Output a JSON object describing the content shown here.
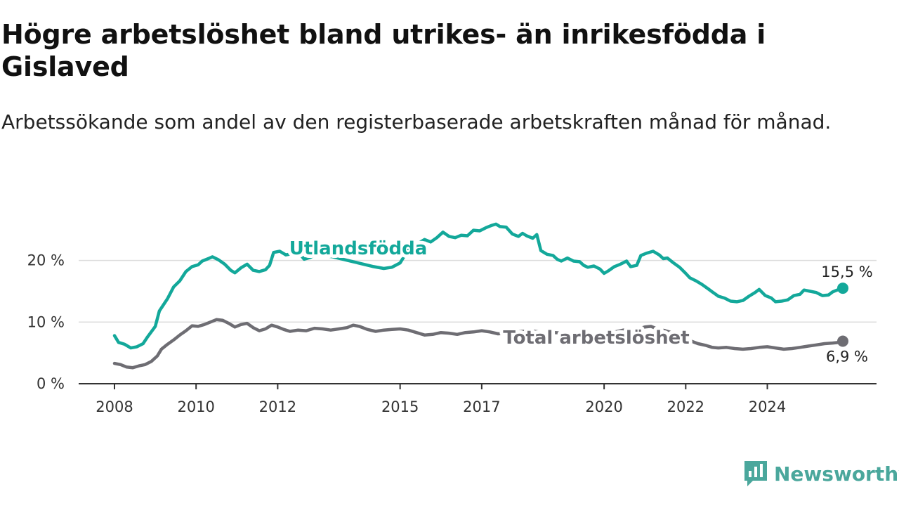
{
  "title": "Högre arbetslöshet bland utrikes- än inrikesfödda i Gislaved",
  "subtitle": "Arbetssökande som andel av den registerbaserade arbetskraften månad för månad.",
  "brand": {
    "name": "Newsworthy",
    "color": "#4aa79c",
    "icon": "newsworthy-logo-icon"
  },
  "chart_data": {
    "type": "line",
    "title": "Högre arbetslöshet bland utrikes- än inrikesfödda i Gislaved",
    "subtitle": "Arbetssökande som andel av den registerbaserade arbetskraften månad för månad.",
    "xlabel": "",
    "ylabel": "",
    "xlim": [
      2008.0,
      2025.0
    ],
    "ylim": [
      0,
      26
    ],
    "x_ticks": [
      2008,
      2010,
      2012,
      2015,
      2017,
      2020,
      2022,
      2024
    ],
    "x_tick_labels": [
      "2008",
      "2010",
      "2012",
      "2015",
      "2017",
      "2020",
      "2022",
      "2024"
    ],
    "y_ticks": [
      0,
      10,
      20
    ],
    "y_tick_labels": [
      "0 %",
      "10 %",
      "20 %"
    ],
    "grid": "horizontal",
    "legend": "inline labels",
    "series": [
      {
        "name": "Utlandsfödda",
        "color": "#13a89a",
        "end_label": "15,5 %",
        "points": [
          [
            2008.0,
            7.8
          ],
          [
            2008.1,
            6.7
          ],
          [
            2008.25,
            6.4
          ],
          [
            2008.4,
            5.8
          ],
          [
            2008.55,
            6.0
          ],
          [
            2008.7,
            6.5
          ],
          [
            2008.8,
            7.5
          ],
          [
            2009.0,
            9.3
          ],
          [
            2009.1,
            11.8
          ],
          [
            2009.3,
            13.8
          ],
          [
            2009.45,
            15.7
          ],
          [
            2009.6,
            16.7
          ],
          [
            2009.75,
            18.2
          ],
          [
            2009.9,
            19.0
          ],
          [
            2010.05,
            19.3
          ],
          [
            2010.15,
            19.9
          ],
          [
            2010.3,
            20.3
          ],
          [
            2010.4,
            20.6
          ],
          [
            2010.55,
            20.1
          ],
          [
            2010.7,
            19.4
          ],
          [
            2010.85,
            18.4
          ],
          [
            2010.95,
            18.0
          ],
          [
            2011.1,
            18.8
          ],
          [
            2011.25,
            19.4
          ],
          [
            2011.4,
            18.4
          ],
          [
            2011.55,
            18.2
          ],
          [
            2011.7,
            18.5
          ],
          [
            2011.8,
            19.2
          ],
          [
            2011.9,
            21.3
          ],
          [
            2012.05,
            21.5
          ],
          [
            2012.2,
            20.9
          ],
          [
            2012.35,
            21.1
          ],
          [
            2012.5,
            21.4
          ],
          [
            2012.65,
            20.2
          ],
          [
            2012.8,
            20.5
          ],
          [
            2012.95,
            21.0
          ],
          [
            2013.1,
            20.8
          ],
          [
            2013.35,
            20.6
          ],
          [
            2013.6,
            20.2
          ],
          [
            2013.85,
            19.8
          ],
          [
            2014.1,
            19.4
          ],
          [
            2014.35,
            19.0
          ],
          [
            2014.6,
            18.7
          ],
          [
            2014.8,
            18.9
          ],
          [
            2015.0,
            19.6
          ],
          [
            2015.15,
            21.2
          ],
          [
            2015.3,
            22.4
          ],
          [
            2015.45,
            22.8
          ],
          [
            2015.6,
            23.4
          ],
          [
            2015.75,
            23.0
          ],
          [
            2015.9,
            23.7
          ],
          [
            2016.05,
            24.6
          ],
          [
            2016.2,
            23.9
          ],
          [
            2016.35,
            23.7
          ],
          [
            2016.5,
            24.1
          ],
          [
            2016.65,
            24.0
          ],
          [
            2016.8,
            24.9
          ],
          [
            2016.95,
            24.8
          ],
          [
            2017.1,
            25.3
          ],
          [
            2017.25,
            25.7
          ],
          [
            2017.35,
            25.9
          ],
          [
            2017.45,
            25.5
          ],
          [
            2017.6,
            25.4
          ],
          [
            2017.75,
            24.3
          ],
          [
            2017.9,
            23.9
          ],
          [
            2018.0,
            24.4
          ],
          [
            2018.1,
            24.0
          ],
          [
            2018.25,
            23.6
          ],
          [
            2018.35,
            24.2
          ],
          [
            2018.45,
            21.6
          ],
          [
            2018.6,
            21.0
          ],
          [
            2018.75,
            20.8
          ],
          [
            2018.85,
            20.2
          ],
          [
            2018.95,
            19.9
          ],
          [
            2019.1,
            20.4
          ],
          [
            2019.25,
            19.9
          ],
          [
            2019.4,
            19.8
          ],
          [
            2019.5,
            19.2
          ],
          [
            2019.6,
            18.9
          ],
          [
            2019.75,
            19.1
          ],
          [
            2019.9,
            18.6
          ],
          [
            2020.0,
            17.9
          ],
          [
            2020.1,
            18.3
          ],
          [
            2020.25,
            19.0
          ],
          [
            2020.4,
            19.4
          ],
          [
            2020.55,
            19.9
          ],
          [
            2020.65,
            19.0
          ],
          [
            2020.8,
            19.2
          ],
          [
            2020.9,
            20.8
          ],
          [
            2021.05,
            21.2
          ],
          [
            2021.2,
            21.5
          ],
          [
            2021.35,
            20.9
          ],
          [
            2021.45,
            20.3
          ],
          [
            2021.55,
            20.4
          ],
          [
            2021.7,
            19.6
          ],
          [
            2021.85,
            18.9
          ],
          [
            2022.0,
            17.9
          ],
          [
            2022.1,
            17.2
          ],
          [
            2022.25,
            16.7
          ],
          [
            2022.4,
            16.1
          ],
          [
            2022.55,
            15.4
          ],
          [
            2022.65,
            14.9
          ],
          [
            2022.8,
            14.2
          ],
          [
            2022.95,
            13.9
          ],
          [
            2023.1,
            13.4
          ],
          [
            2023.25,
            13.3
          ],
          [
            2023.4,
            13.5
          ],
          [
            2023.55,
            14.2
          ],
          [
            2023.7,
            14.8
          ],
          [
            2023.8,
            15.3
          ],
          [
            2023.95,
            14.3
          ],
          [
            2024.1,
            13.9
          ],
          [
            2024.2,
            13.3
          ],
          [
            2024.35,
            13.4
          ],
          [
            2024.5,
            13.6
          ],
          [
            2024.65,
            14.3
          ],
          [
            2024.8,
            14.5
          ],
          [
            2024.9,
            15.2
          ],
          [
            2025.05,
            15.0
          ],
          [
            2025.2,
            14.8
          ],
          [
            2025.35,
            14.3
          ],
          [
            2025.5,
            14.4
          ],
          [
            2025.6,
            14.9
          ],
          [
            2025.75,
            15.3
          ],
          [
            2025.85,
            15.5
          ]
        ]
      },
      {
        "name": "Total arbetslöshet",
        "color": "#6e6d73",
        "end_label": "6,9 %",
        "points": [
          [
            2008.0,
            3.3
          ],
          [
            2008.15,
            3.1
          ],
          [
            2008.3,
            2.7
          ],
          [
            2008.45,
            2.6
          ],
          [
            2008.6,
            2.9
          ],
          [
            2008.75,
            3.1
          ],
          [
            2008.9,
            3.6
          ],
          [
            2009.05,
            4.5
          ],
          [
            2009.15,
            5.6
          ],
          [
            2009.3,
            6.4
          ],
          [
            2009.45,
            7.1
          ],
          [
            2009.6,
            7.9
          ],
          [
            2009.75,
            8.6
          ],
          [
            2009.9,
            9.4
          ],
          [
            2010.05,
            9.3
          ],
          [
            2010.2,
            9.6
          ],
          [
            2010.35,
            10.0
          ],
          [
            2010.5,
            10.4
          ],
          [
            2010.65,
            10.3
          ],
          [
            2010.8,
            9.8
          ],
          [
            2010.95,
            9.2
          ],
          [
            2011.1,
            9.6
          ],
          [
            2011.25,
            9.8
          ],
          [
            2011.4,
            9.1
          ],
          [
            2011.55,
            8.6
          ],
          [
            2011.7,
            8.9
          ],
          [
            2011.85,
            9.5
          ],
          [
            2012.0,
            9.2
          ],
          [
            2012.15,
            8.8
          ],
          [
            2012.3,
            8.5
          ],
          [
            2012.5,
            8.7
          ],
          [
            2012.7,
            8.6
          ],
          [
            2012.9,
            9.0
          ],
          [
            2013.1,
            8.9
          ],
          [
            2013.3,
            8.7
          ],
          [
            2013.5,
            8.9
          ],
          [
            2013.7,
            9.1
          ],
          [
            2013.85,
            9.5
          ],
          [
            2014.0,
            9.3
          ],
          [
            2014.2,
            8.8
          ],
          [
            2014.4,
            8.5
          ],
          [
            2014.6,
            8.7
          ],
          [
            2014.8,
            8.8
          ],
          [
            2015.0,
            8.9
          ],
          [
            2015.2,
            8.7
          ],
          [
            2015.4,
            8.3
          ],
          [
            2015.6,
            7.9
          ],
          [
            2015.8,
            8.0
          ],
          [
            2016.0,
            8.3
          ],
          [
            2016.2,
            8.2
          ],
          [
            2016.4,
            8.0
          ],
          [
            2016.6,
            8.3
          ],
          [
            2016.8,
            8.4
          ],
          [
            2017.0,
            8.6
          ],
          [
            2017.2,
            8.4
          ],
          [
            2017.4,
            8.1
          ],
          [
            2017.6,
            8.2
          ],
          [
            2017.8,
            8.4
          ],
          [
            2018.0,
            8.5
          ],
          [
            2018.2,
            8.6
          ],
          [
            2018.4,
            8.4
          ],
          [
            2018.6,
            8.2
          ],
          [
            2018.8,
            8.3
          ],
          [
            2019.0,
            8.2
          ],
          [
            2019.2,
            8.0
          ],
          [
            2019.4,
            7.9
          ],
          [
            2019.6,
            7.7
          ],
          [
            2019.8,
            7.9
          ],
          [
            2020.0,
            8.0
          ],
          [
            2020.2,
            8.3
          ],
          [
            2020.4,
            8.6
          ],
          [
            2020.6,
            8.9
          ],
          [
            2020.8,
            8.8
          ],
          [
            2021.0,
            9.2
          ],
          [
            2021.15,
            9.3
          ],
          [
            2021.3,
            8.9
          ],
          [
            2021.5,
            8.6
          ],
          [
            2021.7,
            8.2
          ],
          [
            2021.9,
            7.6
          ],
          [
            2022.1,
            7.0
          ],
          [
            2022.3,
            6.5
          ],
          [
            2022.5,
            6.2
          ],
          [
            2022.65,
            5.9
          ],
          [
            2022.8,
            5.8
          ],
          [
            2023.0,
            5.9
          ],
          [
            2023.2,
            5.7
          ],
          [
            2023.4,
            5.6
          ],
          [
            2023.6,
            5.7
          ],
          [
            2023.8,
            5.9
          ],
          [
            2024.0,
            6.0
          ],
          [
            2024.2,
            5.8
          ],
          [
            2024.4,
            5.6
          ],
          [
            2024.6,
            5.7
          ],
          [
            2024.8,
            5.9
          ],
          [
            2025.0,
            6.1
          ],
          [
            2025.2,
            6.3
          ],
          [
            2025.4,
            6.5
          ],
          [
            2025.6,
            6.6
          ],
          [
            2025.75,
            6.7
          ],
          [
            2025.85,
            6.9
          ]
        ]
      }
    ]
  }
}
